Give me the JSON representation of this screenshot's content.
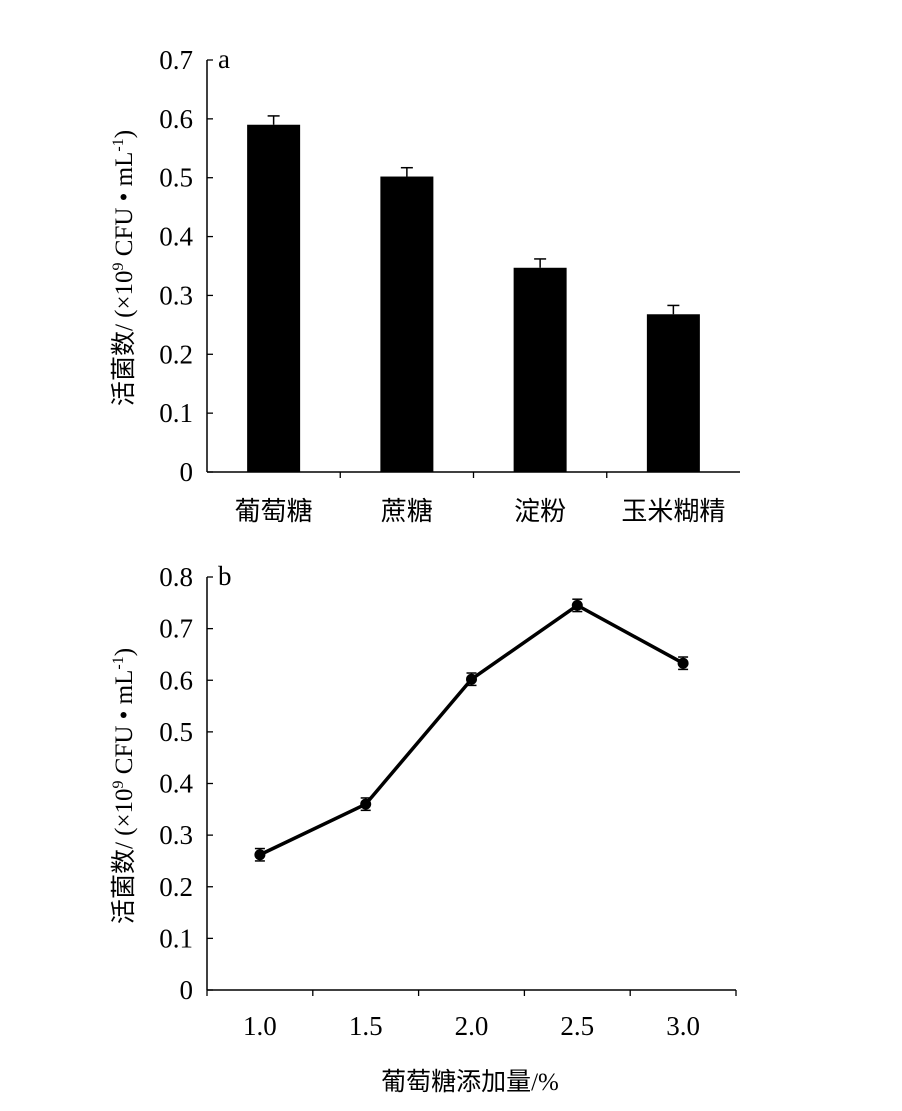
{
  "chart_data": [
    {
      "panel": "a",
      "type": "bar",
      "categories": [
        "葡萄糖",
        "蔗糖",
        "淀粉",
        "玉米糊精"
      ],
      "values": [
        0.59,
        0.502,
        0.347,
        0.268
      ],
      "errors": [
        0.015,
        0.015,
        0.015,
        0.015
      ],
      "ylabel_main": "活菌数/ (×10",
      "ylabel_sup": "9",
      "ylabel_mid": " CFU • mL",
      "ylabel_sup2": "-1",
      "ylabel_end": ")",
      "xlabel": "",
      "ylim": [
        0,
        0.7
      ],
      "yticks": [
        "0",
        "0.1",
        "0.2",
        "0.3",
        "0.4",
        "0.5",
        "0.6",
        "0.7"
      ],
      "grid": false,
      "bar_color": "#000000"
    },
    {
      "panel": "b",
      "type": "line",
      "x": [
        1.0,
        1.5,
        2.0,
        2.5,
        3.0
      ],
      "xticks": [
        "1.0",
        "1.5",
        "2.0",
        "2.5",
        "3.0"
      ],
      "values": [
        0.262,
        0.36,
        0.602,
        0.745,
        0.633
      ],
      "errors": [
        0.012,
        0.012,
        0.012,
        0.012,
        0.012
      ],
      "xlabel": "葡萄糖添加量/%",
      "ylabel_main": "活菌数/ (×10",
      "ylabel_sup": "9",
      "ylabel_mid": " CFU • mL",
      "ylabel_sup2": "-1",
      "ylabel_end": ")",
      "ylim": [
        0,
        0.8
      ],
      "yticks": [
        "0",
        "0.1",
        "0.2",
        "0.3",
        "0.4",
        "0.5",
        "0.6",
        "0.7",
        "0.8"
      ],
      "grid": false,
      "line_color": "#000000"
    }
  ]
}
